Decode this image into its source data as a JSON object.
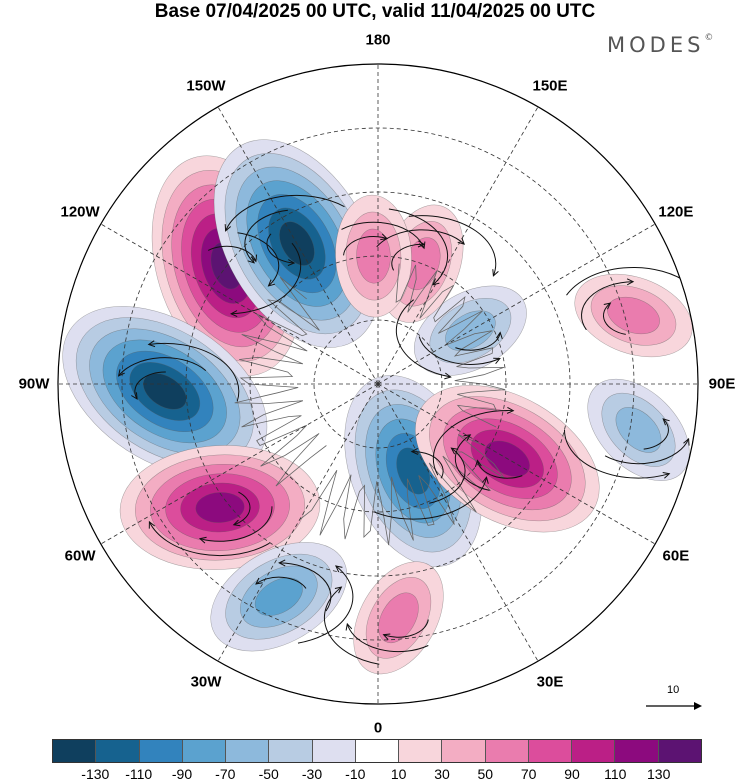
{
  "title": "Base 07/04/2025 00 UTC, valid 11/04/2025 00 UTC",
  "brand": "MODES",
  "brand_mark": "©",
  "longitude_labels": [
    {
      "text": "180",
      "lon": 180
    },
    {
      "text": "150E",
      "lon": 150
    },
    {
      "text": "120E",
      "lon": 120
    },
    {
      "text": "90E",
      "lon": 90
    },
    {
      "text": "60E",
      "lon": 60
    },
    {
      "text": "30E",
      "lon": 30
    },
    {
      "text": "0",
      "lon": 0
    },
    {
      "text": "30W",
      "lon": -30
    },
    {
      "text": "60W",
      "lon": -60
    },
    {
      "text": "90W",
      "lon": -90
    },
    {
      "text": "120W",
      "lon": -120
    },
    {
      "text": "150W",
      "lon": -150
    }
  ],
  "reference_vector_label": "10",
  "colorbar": {
    "colors": [
      "#0f3f5e",
      "#16628f",
      "#3283bd",
      "#5ba2cf",
      "#8db9dc",
      "#b8cce3",
      "#dedff0",
      "#ffffff",
      "#f8d6dc",
      "#f3adc3",
      "#ea7cae",
      "#dc4d9c",
      "#bb1f86",
      "#8c0a7e",
      "#5c1372"
    ],
    "ticks": [
      "-130",
      "-110",
      "-90",
      "-70",
      "-50",
      "-30",
      "-10",
      "10",
      "30",
      "50",
      "70",
      "90",
      "110",
      "130"
    ]
  },
  "field_anomalies": [
    {
      "sign": "positive",
      "lon": -128,
      "colat": 45,
      "value": 130
    },
    {
      "sign": "negative",
      "lon": -150,
      "colat": 38,
      "value": -130
    },
    {
      "sign": "negative",
      "lon": -88,
      "colat": 50,
      "value": -130
    },
    {
      "sign": "positive",
      "lon": -52,
      "colat": 47,
      "value": 110
    },
    {
      "sign": "negative",
      "lon": -25,
      "colat": 55,
      "value": -70
    },
    {
      "sign": "negative",
      "lon": 22,
      "colat": 22,
      "value": -110
    },
    {
      "sign": "positive",
      "lon": 60,
      "colat": 35,
      "value": 110
    },
    {
      "sign": "negative",
      "lon": 120,
      "colat": 25,
      "value": -50
    },
    {
      "sign": "positive",
      "lon": 160,
      "colat": 30,
      "value": 50
    },
    {
      "sign": "positive",
      "lon": -178,
      "colat": 30,
      "value": 50
    },
    {
      "sign": "negative",
      "lon": 80,
      "colat": 62,
      "value": -50
    },
    {
      "sign": "positive",
      "lon": 105,
      "colat": 62,
      "value": 50
    },
    {
      "sign": "positive",
      "lon": 5,
      "colat": 55,
      "value": 50
    }
  ]
}
